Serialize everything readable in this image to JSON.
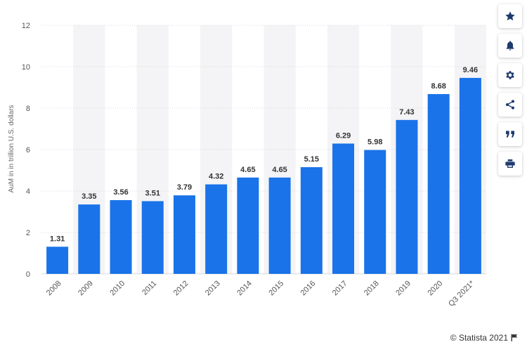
{
  "chart_data": {
    "type": "bar",
    "categories": [
      "2008",
      "2009",
      "2010",
      "2011",
      "2012",
      "2013",
      "2014",
      "2015",
      "2016",
      "2017",
      "2018",
      "2019",
      "2020",
      "Q3 2021*"
    ],
    "values": [
      1.31,
      3.35,
      3.56,
      3.51,
      3.79,
      4.32,
      4.65,
      4.65,
      5.15,
      6.29,
      5.98,
      7.43,
      8.68,
      9.46
    ],
    "value_labels": [
      "1.31",
      "3.35",
      "3.56",
      "3.51",
      "3.79",
      "4.32",
      "4.65",
      "4.65",
      "5.15",
      "6.29",
      "5.98",
      "7.43",
      "8.68",
      "9.46"
    ],
    "ylabel": "AuM in in trillion U.S. dollars",
    "xlabel": "",
    "ylim": [
      0,
      12
    ],
    "yticks": [
      "0",
      "2",
      "4",
      "6",
      "8",
      "10",
      "12"
    ],
    "grid": true,
    "bar_color": "#1a73e8",
    "band_color": "#f4f4f6",
    "gridline_color": "#d8d8d8"
  },
  "toolbar": {
    "buttons": [
      {
        "name": "star",
        "icon": "star-icon"
      },
      {
        "name": "bell",
        "icon": "bell-icon"
      },
      {
        "name": "settings",
        "icon": "gear-icon"
      },
      {
        "name": "share",
        "icon": "share-icon"
      },
      {
        "name": "cite",
        "icon": "quote-icon"
      },
      {
        "name": "print",
        "icon": "print-icon"
      }
    ],
    "icon_color": "#1e3a6e"
  },
  "footer": {
    "credit": "© Statista 2021"
  }
}
